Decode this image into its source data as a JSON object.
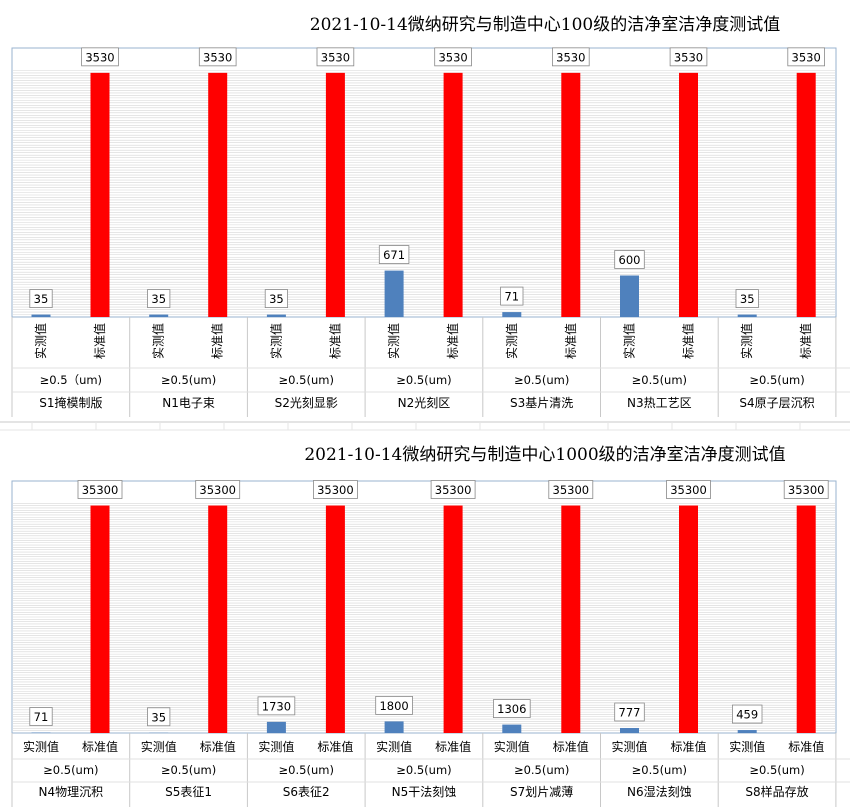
{
  "chart_data": [
    {
      "type": "bar",
      "title": "2021-10-14微纳研究与制造中心100级的洁净室洁净度测试值",
      "ylim": [
        0,
        3600
      ],
      "grid": true,
      "legend": "none",
      "series_labels": [
        "实测值",
        "标准值"
      ],
      "colors": {
        "actual": "#4f81bd",
        "standard": "#ff0000"
      },
      "groups": [
        {
          "particle": "≥0.5（um)",
          "location": "S1掩模制版",
          "actual": 35,
          "standard": 3530
        },
        {
          "particle": "≥0.5(um)",
          "location": "N1电子束",
          "actual": 35,
          "standard": 3530
        },
        {
          "particle": "≥0.5(um)",
          "location": "S2光刻显影",
          "actual": 35,
          "standard": 3530
        },
        {
          "particle": "≥0.5(um)",
          "location": "N2光刻区",
          "actual": 671,
          "standard": 3530
        },
        {
          "particle": "≥0.5(um)",
          "location": "S3基片清洗",
          "actual": 71,
          "standard": 3530
        },
        {
          "particle": "≥0.5(um)",
          "location": "N3热工艺区",
          "actual": 600,
          "standard": 3530
        },
        {
          "particle": "≥0.5(um)",
          "location": "S4原子层沉积",
          "actual": 35,
          "standard": 3530
        }
      ]
    },
    {
      "type": "bar",
      "title": "2021-10-14微纳研究与制造中心1000级的洁净室洁净度测试值",
      "ylim": [
        0,
        36000
      ],
      "grid": true,
      "legend": "none",
      "series_labels": [
        "实测值",
        "标准值"
      ],
      "colors": {
        "actual": "#4f81bd",
        "standard": "#ff0000"
      },
      "groups": [
        {
          "particle": "≥0.5(um)",
          "location": "N4物理沉积",
          "actual": 71,
          "standard": 35300
        },
        {
          "particle": "≥0.5(um)",
          "location": "S5表征1",
          "actual": 35,
          "standard": 35300
        },
        {
          "particle": "≥0.5(um)",
          "location": "S6表征2",
          "actual": 1730,
          "standard": 35300
        },
        {
          "particle": "≥0.5(um)",
          "location": "N5干法刻蚀",
          "actual": 1800,
          "standard": 35300
        },
        {
          "particle": "≥0.5(um)",
          "location": "S7划片减薄",
          "actual": 1306,
          "standard": 35300
        },
        {
          "particle": "≥0.5(um)",
          "location": "N6湿法刻蚀",
          "actual": 777,
          "standard": 35300
        },
        {
          "particle": "≥0.5(um)",
          "location": "S8样品存放",
          "actual": 459,
          "standard": 35300
        }
      ]
    }
  ]
}
